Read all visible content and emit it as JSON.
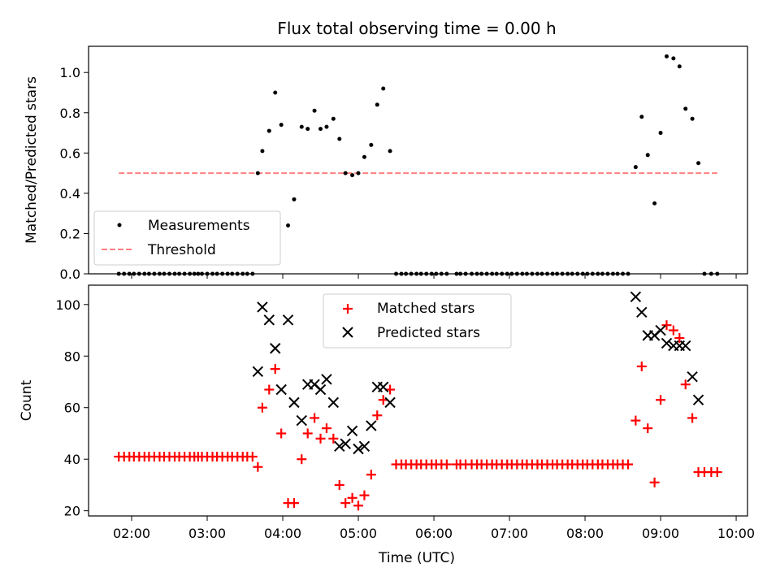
{
  "figure": {
    "title": "Flux total observing time = 0.00 h",
    "xlabel": "Time (UTC)"
  },
  "chart_data": [
    {
      "type": "scatter",
      "ylabel": "Matched/Predicted stars",
      "ylim": [
        0,
        1.13
      ],
      "yticks": [
        0.0,
        0.2,
        0.4,
        0.6,
        0.8,
        1.0
      ],
      "ytick_labels": [
        "0.0",
        "0.2",
        "0.4",
        "0.6",
        "0.8",
        "1.0"
      ],
      "x_unit": "hour (UTC)",
      "xlim": [
        1.43,
        10.15
      ],
      "legend": {
        "placement": "lower-left",
        "entries": [
          "Measurements",
          "Threshold"
        ]
      },
      "series": [
        {
          "name": "Measurements",
          "color": "#000000",
          "marker": "dot",
          "points": [
            [
              1.83,
              0
            ],
            [
              1.9,
              0
            ],
            [
              1.97,
              0
            ],
            [
              2.03,
              0
            ],
            [
              2.1,
              0
            ],
            [
              2.17,
              0
            ],
            [
              2.23,
              0
            ],
            [
              2.3,
              0
            ],
            [
              2.37,
              0
            ],
            [
              2.43,
              0
            ],
            [
              2.5,
              0
            ],
            [
              2.57,
              0
            ],
            [
              2.63,
              0
            ],
            [
              2.7,
              0
            ],
            [
              2.77,
              0
            ],
            [
              2.83,
              0
            ],
            [
              2.88,
              0
            ],
            [
              2.93,
              0
            ],
            [
              3.0,
              0
            ],
            [
              3.07,
              0
            ],
            [
              3.13,
              0
            ],
            [
              3.2,
              0
            ],
            [
              3.27,
              0
            ],
            [
              3.33,
              0
            ],
            [
              3.4,
              0
            ],
            [
              3.47,
              0
            ],
            [
              3.53,
              0
            ],
            [
              3.6,
              0
            ],
            [
              3.67,
              0.5
            ],
            [
              3.73,
              0.61
            ],
            [
              3.82,
              0.71
            ],
            [
              3.9,
              0.9
            ],
            [
              3.98,
              0.74
            ],
            [
              4.07,
              0.24
            ],
            [
              4.15,
              0.37
            ],
            [
              4.25,
              0.73
            ],
            [
              4.33,
              0.72
            ],
            [
              4.42,
              0.81
            ],
            [
              4.5,
              0.72
            ],
            [
              4.58,
              0.73
            ],
            [
              4.67,
              0.77
            ],
            [
              4.75,
              0.67
            ],
            [
              4.83,
              0.5
            ],
            [
              4.92,
              0.49
            ],
            [
              5.0,
              0.5
            ],
            [
              5.08,
              0.58
            ],
            [
              5.17,
              0.64
            ],
            [
              5.25,
              0.84
            ],
            [
              5.33,
              0.92
            ],
            [
              5.42,
              0.61
            ],
            [
              5.5,
              0
            ],
            [
              5.57,
              0
            ],
            [
              5.63,
              0
            ],
            [
              5.7,
              0
            ],
            [
              5.77,
              0
            ],
            [
              5.83,
              0
            ],
            [
              5.9,
              0
            ],
            [
              5.97,
              0
            ],
            [
              6.03,
              0
            ],
            [
              6.1,
              0
            ],
            [
              6.17,
              0
            ],
            [
              6.3,
              0
            ],
            [
              6.35,
              0
            ],
            [
              6.42,
              0
            ],
            [
              6.5,
              0
            ],
            [
              6.57,
              0
            ],
            [
              6.63,
              0
            ],
            [
              6.7,
              0
            ],
            [
              6.77,
              0
            ],
            [
              6.83,
              0
            ],
            [
              6.9,
              0
            ],
            [
              6.97,
              0
            ],
            [
              7.03,
              0
            ],
            [
              7.1,
              0
            ],
            [
              7.17,
              0
            ],
            [
              7.23,
              0
            ],
            [
              7.3,
              0
            ],
            [
              7.37,
              0
            ],
            [
              7.43,
              0
            ],
            [
              7.5,
              0
            ],
            [
              7.57,
              0
            ],
            [
              7.63,
              0
            ],
            [
              7.7,
              0
            ],
            [
              7.77,
              0
            ],
            [
              7.83,
              0
            ],
            [
              7.9,
              0
            ],
            [
              7.97,
              0
            ],
            [
              8.03,
              0
            ],
            [
              8.1,
              0
            ],
            [
              8.17,
              0
            ],
            [
              8.23,
              0
            ],
            [
              8.3,
              0
            ],
            [
              8.37,
              0
            ],
            [
              8.43,
              0
            ],
            [
              8.5,
              0
            ],
            [
              8.57,
              0
            ],
            [
              8.67,
              0.53
            ],
            [
              8.75,
              0.78
            ],
            [
              8.83,
              0.59
            ],
            [
              8.92,
              0.35
            ],
            [
              9.0,
              0.7
            ],
            [
              9.08,
              1.08
            ],
            [
              9.17,
              1.07
            ],
            [
              9.25,
              1.03
            ],
            [
              9.33,
              0.82
            ],
            [
              9.42,
              0.77
            ],
            [
              9.5,
              0.55
            ],
            [
              9.58,
              0
            ],
            [
              9.67,
              0
            ],
            [
              9.75,
              0
            ]
          ]
        },
        {
          "name": "Threshold",
          "color": "#ff7f7f",
          "style": "dashed",
          "y": 0.5,
          "x_range": [
            1.83,
            9.75
          ]
        }
      ]
    },
    {
      "type": "scatter",
      "ylabel": "Count",
      "ylim": [
        18,
        107.5
      ],
      "yticks": [
        20,
        40,
        60,
        80,
        100
      ],
      "ytick_labels": [
        "20",
        "40",
        "60",
        "80",
        "100"
      ],
      "x_unit": "hour (UTC)",
      "xlim": [
        1.43,
        10.15
      ],
      "xticks": [
        2,
        3,
        4,
        5,
        6,
        7,
        8,
        9,
        10
      ],
      "xtick_labels": [
        "02:00",
        "03:00",
        "04:00",
        "05:00",
        "06:00",
        "07:00",
        "08:00",
        "09:00",
        "10:00"
      ],
      "legend": {
        "placement": "top-center",
        "entries": [
          "Matched stars",
          "Predicted stars"
        ]
      },
      "series": [
        {
          "name": "Matched stars",
          "color": "#ff0000",
          "marker": "plus",
          "points": [
            [
              1.83,
              41
            ],
            [
              1.9,
              41
            ],
            [
              1.97,
              41
            ],
            [
              2.03,
              41
            ],
            [
              2.1,
              41
            ],
            [
              2.17,
              41
            ],
            [
              2.23,
              41
            ],
            [
              2.3,
              41
            ],
            [
              2.37,
              41
            ],
            [
              2.43,
              41
            ],
            [
              2.5,
              41
            ],
            [
              2.57,
              41
            ],
            [
              2.63,
              41
            ],
            [
              2.7,
              41
            ],
            [
              2.77,
              41
            ],
            [
              2.83,
              41
            ],
            [
              2.88,
              41
            ],
            [
              2.93,
              41
            ],
            [
              3.0,
              41
            ],
            [
              3.07,
              41
            ],
            [
              3.13,
              41
            ],
            [
              3.2,
              41
            ],
            [
              3.27,
              41
            ],
            [
              3.33,
              41
            ],
            [
              3.4,
              41
            ],
            [
              3.47,
              41
            ],
            [
              3.53,
              41
            ],
            [
              3.6,
              41
            ],
            [
              3.67,
              37
            ],
            [
              3.73,
              60
            ],
            [
              3.82,
              67
            ],
            [
              3.9,
              75
            ],
            [
              3.98,
              50
            ],
            [
              4.07,
              23
            ],
            [
              4.15,
              23
            ],
            [
              4.25,
              40
            ],
            [
              4.33,
              50
            ],
            [
              4.42,
              56
            ],
            [
              4.5,
              48
            ],
            [
              4.58,
              52
            ],
            [
              4.67,
              48
            ],
            [
              4.75,
              30
            ],
            [
              4.83,
              23
            ],
            [
              4.92,
              25
            ],
            [
              5.0,
              22
            ],
            [
              5.08,
              26
            ],
            [
              5.17,
              34
            ],
            [
              5.25,
              57
            ],
            [
              5.33,
              63
            ],
            [
              5.42,
              67
            ],
            [
              5.5,
              38
            ],
            [
              5.57,
              38
            ],
            [
              5.63,
              38
            ],
            [
              5.7,
              38
            ],
            [
              5.77,
              38
            ],
            [
              5.83,
              38
            ],
            [
              5.9,
              38
            ],
            [
              5.97,
              38
            ],
            [
              6.03,
              38
            ],
            [
              6.1,
              38
            ],
            [
              6.17,
              38
            ],
            [
              6.3,
              38
            ],
            [
              6.35,
              38
            ],
            [
              6.42,
              38
            ],
            [
              6.5,
              38
            ],
            [
              6.57,
              38
            ],
            [
              6.63,
              38
            ],
            [
              6.7,
              38
            ],
            [
              6.77,
              38
            ],
            [
              6.83,
              38
            ],
            [
              6.9,
              38
            ],
            [
              6.97,
              38
            ],
            [
              7.03,
              38
            ],
            [
              7.1,
              38
            ],
            [
              7.17,
              38
            ],
            [
              7.23,
              38
            ],
            [
              7.3,
              38
            ],
            [
              7.37,
              38
            ],
            [
              7.43,
              38
            ],
            [
              7.5,
              38
            ],
            [
              7.57,
              38
            ],
            [
              7.63,
              38
            ],
            [
              7.7,
              38
            ],
            [
              7.77,
              38
            ],
            [
              7.83,
              38
            ],
            [
              7.9,
              38
            ],
            [
              7.97,
              38
            ],
            [
              8.03,
              38
            ],
            [
              8.1,
              38
            ],
            [
              8.17,
              38
            ],
            [
              8.23,
              38
            ],
            [
              8.3,
              38
            ],
            [
              8.37,
              38
            ],
            [
              8.43,
              38
            ],
            [
              8.5,
              38
            ],
            [
              8.57,
              38
            ],
            [
              8.67,
              55
            ],
            [
              8.75,
              76
            ],
            [
              8.83,
              52
            ],
            [
              8.92,
              31
            ],
            [
              9.0,
              63
            ],
            [
              9.08,
              92
            ],
            [
              9.17,
              90
            ],
            [
              9.25,
              87
            ],
            [
              9.33,
              69
            ],
            [
              9.42,
              56
            ],
            [
              9.5,
              35
            ],
            [
              9.58,
              35
            ],
            [
              9.67,
              35
            ],
            [
              9.75,
              35
            ]
          ]
        },
        {
          "name": "Predicted stars",
          "color": "#000000",
          "marker": "x",
          "points": [
            [
              3.67,
              74
            ],
            [
              3.73,
              99
            ],
            [
              3.82,
              94
            ],
            [
              3.9,
              83
            ],
            [
              3.98,
              67
            ],
            [
              4.07,
              94
            ],
            [
              4.15,
              62
            ],
            [
              4.25,
              55
            ],
            [
              4.33,
              69
            ],
            [
              4.42,
              69
            ],
            [
              4.5,
              67
            ],
            [
              4.58,
              71
            ],
            [
              4.67,
              62
            ],
            [
              4.75,
              45
            ],
            [
              4.83,
              46
            ],
            [
              4.92,
              51
            ],
            [
              5.0,
              44
            ],
            [
              5.08,
              45
            ],
            [
              5.17,
              53
            ],
            [
              5.25,
              68
            ],
            [
              5.33,
              68
            ],
            [
              5.42,
              62
            ],
            [
              8.67,
              103
            ],
            [
              8.75,
              97
            ],
            [
              8.83,
              88
            ],
            [
              8.92,
              88
            ],
            [
              9.0,
              90
            ],
            [
              9.08,
              85
            ],
            [
              9.17,
              84
            ],
            [
              9.25,
              84
            ],
            [
              9.33,
              84
            ],
            [
              9.42,
              72
            ],
            [
              9.5,
              63
            ]
          ]
        }
      ]
    }
  ]
}
